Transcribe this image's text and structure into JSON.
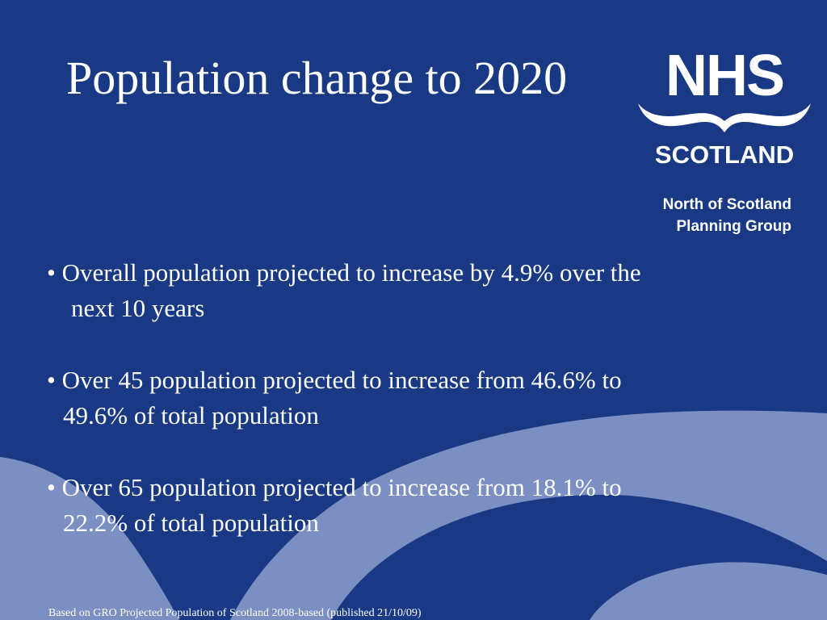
{
  "slide": {
    "title": "Population change to 2020",
    "logo": {
      "text": "NHS",
      "subtext": "SCOTLAND",
      "icon": "nhs-scotland-logo"
    },
    "organisation": {
      "line1": "North of Scotland",
      "line2": "Planning Group"
    },
    "bullets": [
      {
        "line1": "• Overall population projected to increase by 4.9% over the",
        "line2": "next 10 years"
      },
      {
        "line1": "• Over 45 population projected to increase from 46.6% to",
        "line2": "49.6% of total population"
      },
      {
        "line1": "• Over 65 population projected to increase from 18.1% to",
        "line2": "22.2% of total population"
      }
    ],
    "footnote": "Based on GRO Projected Population of Scotland 2008-based (published 21/10/09)"
  },
  "colors": {
    "background": "#193985",
    "wave": "#7e92c4",
    "text": "#ffffff"
  }
}
